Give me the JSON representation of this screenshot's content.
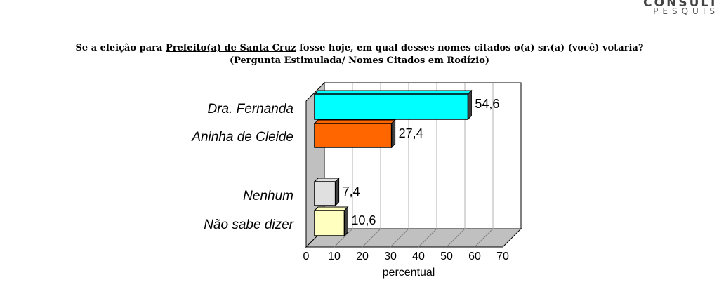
{
  "brand": {
    "name": "CONSULT",
    "sub": "PESQUIS"
  },
  "question": {
    "pre": "Se a eleição para ",
    "underlined": "Prefeito(a) de Santa Cruz",
    "post": " fosse hoje, em qual desses nomes citados o(a) sr.(a) (você) votaria?",
    "line2": "(Pergunta Estimulada/ Nomes Citados em Rodízio)"
  },
  "chart_data": {
    "type": "bar",
    "orientation": "horizontal",
    "categories": [
      "Dra. Fernanda",
      "Aninha de Cleide",
      "Nenhum",
      "Não sabe dizer"
    ],
    "values": [
      54.6,
      27.4,
      7.4,
      10.6
    ],
    "value_labels": [
      "54,6",
      "27,4",
      "7,4",
      "10,6"
    ],
    "colors": [
      "#00ffff",
      "#ff6600",
      "#e0e0e0",
      "#ffffc0"
    ],
    "xlabel": "percentual",
    "xlim": [
      0,
      70
    ],
    "xticks": [
      "0",
      "10",
      "20",
      "30",
      "40",
      "50",
      "60",
      "70"
    ],
    "grid": true
  }
}
